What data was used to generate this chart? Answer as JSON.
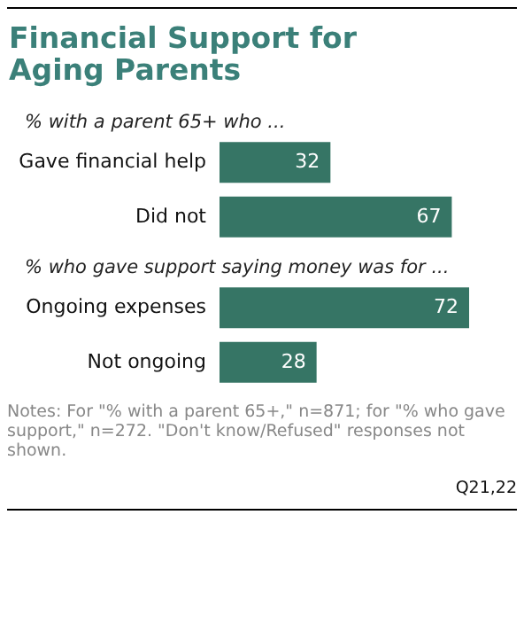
{
  "chart_data": [
    {
      "type": "bar",
      "orientation": "horizontal",
      "title": "Financial Support for Aging Parents",
      "subtitle": "% with a parent 65+ who ...",
      "categories": [
        "Gave financial help",
        "Did not"
      ],
      "values": [
        32,
        67
      ],
      "color": "#367565",
      "data_labels": true
    },
    {
      "type": "bar",
      "orientation": "horizontal",
      "title": "% who gave support saying money was for ...",
      "categories": [
        "Ongoing expenses",
        "Not ongoing"
      ],
      "values": [
        72,
        28
      ],
      "color": "#367565",
      "data_labels": true,
      "annotations": [
        "Notes: For \"% with a parent 65+,\" n=871; for \"% who gave support,\" n=272. \"Don't know/Refused\" responses not shown.",
        "Q21,22"
      ]
    }
  ]
}
